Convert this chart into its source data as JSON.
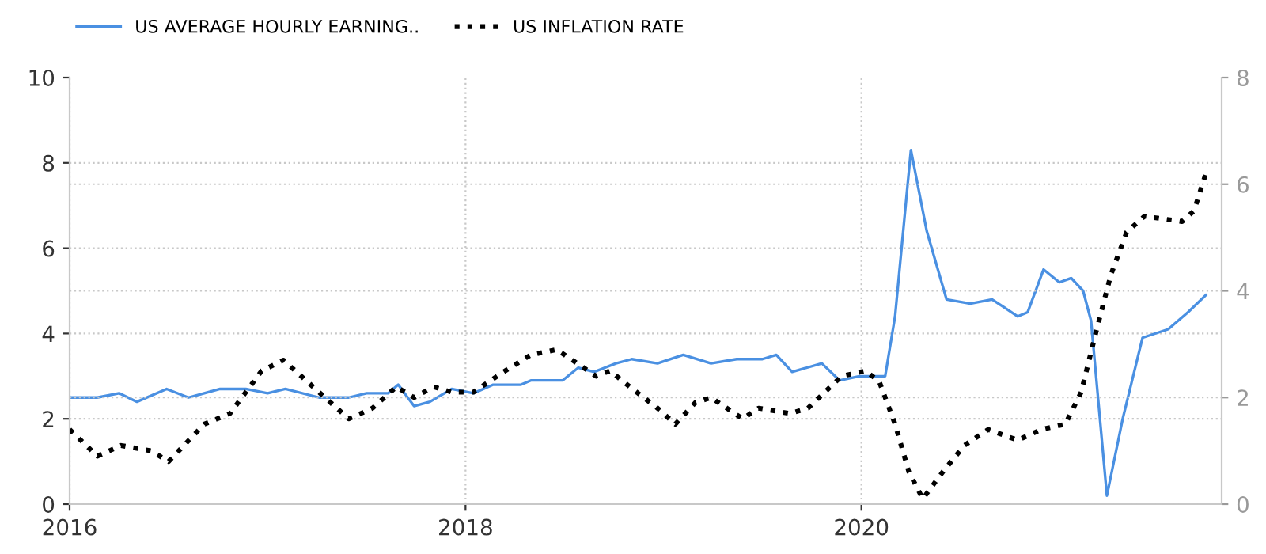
{
  "chart_data": {
    "type": "line",
    "xlim": [
      2016,
      2021.82
    ],
    "xticks": [
      2016,
      2018,
      2020
    ],
    "ylim": [
      0,
      10
    ],
    "yticks": [
      0,
      2,
      4,
      6,
      8,
      10
    ],
    "y2lim": [
      0,
      8
    ],
    "y2ticks": [
      0,
      2,
      4,
      6,
      8
    ],
    "grid": true,
    "legend": "top left",
    "marker": "none",
    "series": [
      {
        "name": "US AVERAGE HOURLY EARNING..",
        "color": "#4a90e2",
        "line_style": "solid",
        "x": [
          2016.0,
          2016.14,
          2016.25,
          2016.34,
          2016.49,
          2016.6,
          2016.76,
          2016.89,
          2017.0,
          2017.09,
          2017.26,
          2017.41,
          2017.5,
          2017.61,
          2017.66,
          2017.74,
          2017.82,
          2017.93,
          2018.04,
          2018.14,
          2018.28,
          2018.33,
          2018.49,
          2018.57,
          2018.65,
          2018.76,
          2018.84,
          2018.97,
          2019.1,
          2019.24,
          2019.37,
          2019.5,
          2019.57,
          2019.65,
          2019.8,
          2019.89,
          2019.99,
          2020.12,
          2020.17,
          2020.25,
          2020.33,
          2020.43,
          2020.55,
          2020.66,
          2020.79,
          2020.84,
          2020.92,
          2021.0,
          2021.06,
          2021.12,
          2021.16,
          2021.24,
          2021.32,
          2021.42,
          2021.55,
          2021.65,
          2021.74
        ],
        "values": [
          2.5,
          2.5,
          2.6,
          2.4,
          2.7,
          2.5,
          2.7,
          2.7,
          2.6,
          2.7,
          2.5,
          2.5,
          2.6,
          2.6,
          2.8,
          2.3,
          2.4,
          2.7,
          2.6,
          2.8,
          2.8,
          2.9,
          2.9,
          3.2,
          3.1,
          3.3,
          3.4,
          3.3,
          3.5,
          3.3,
          3.4,
          3.4,
          3.5,
          3.1,
          3.3,
          2.9,
          3.0,
          3.0,
          4.4,
          8.3,
          6.4,
          4.8,
          4.7,
          4.8,
          4.4,
          4.5,
          5.5,
          5.2,
          5.3,
          5.0,
          4.3,
          0.2,
          2.0,
          3.9,
          4.1,
          4.5,
          4.9
        ]
      },
      {
        "name": "US INFLATION RATE",
        "color": "#000000",
        "line_style": "dotted",
        "axis": "y2",
        "x": [
          2016.0,
          2016.14,
          2016.26,
          2016.41,
          2016.5,
          2016.68,
          2016.81,
          2016.97,
          2017.08,
          2017.17,
          2017.29,
          2017.41,
          2017.53,
          2017.65,
          2017.74,
          2017.84,
          2017.93,
          2018.04,
          2018.2,
          2018.33,
          2018.46,
          2018.58,
          2018.66,
          2018.73,
          2018.83,
          2018.97,
          2019.06,
          2019.16,
          2019.24,
          2019.4,
          2019.48,
          2019.64,
          2019.73,
          2019.9,
          2020.02,
          2020.09,
          2020.17,
          2020.24,
          2020.31,
          2020.41,
          2020.52,
          2020.64,
          2020.79,
          2020.91,
          2021.03,
          2021.11,
          2021.19,
          2021.26,
          2021.34,
          2021.43,
          2021.62,
          2021.68,
          2021.74
        ],
        "values": [
          1.4,
          0.9,
          1.1,
          1.0,
          0.8,
          1.5,
          1.7,
          2.5,
          2.7,
          2.4,
          2.0,
          1.6,
          1.8,
          2.2,
          2.0,
          2.2,
          2.1,
          2.1,
          2.5,
          2.8,
          2.9,
          2.6,
          2.4,
          2.5,
          2.2,
          1.8,
          1.5,
          1.9,
          2.0,
          1.6,
          1.8,
          1.7,
          1.8,
          2.4,
          2.5,
          2.3,
          1.5,
          0.6,
          0.1,
          0.6,
          1.1,
          1.4,
          1.2,
          1.4,
          1.5,
          2.1,
          3.3,
          4.3,
          5.1,
          5.4,
          5.3,
          5.5,
          6.2
        ]
      }
    ]
  }
}
